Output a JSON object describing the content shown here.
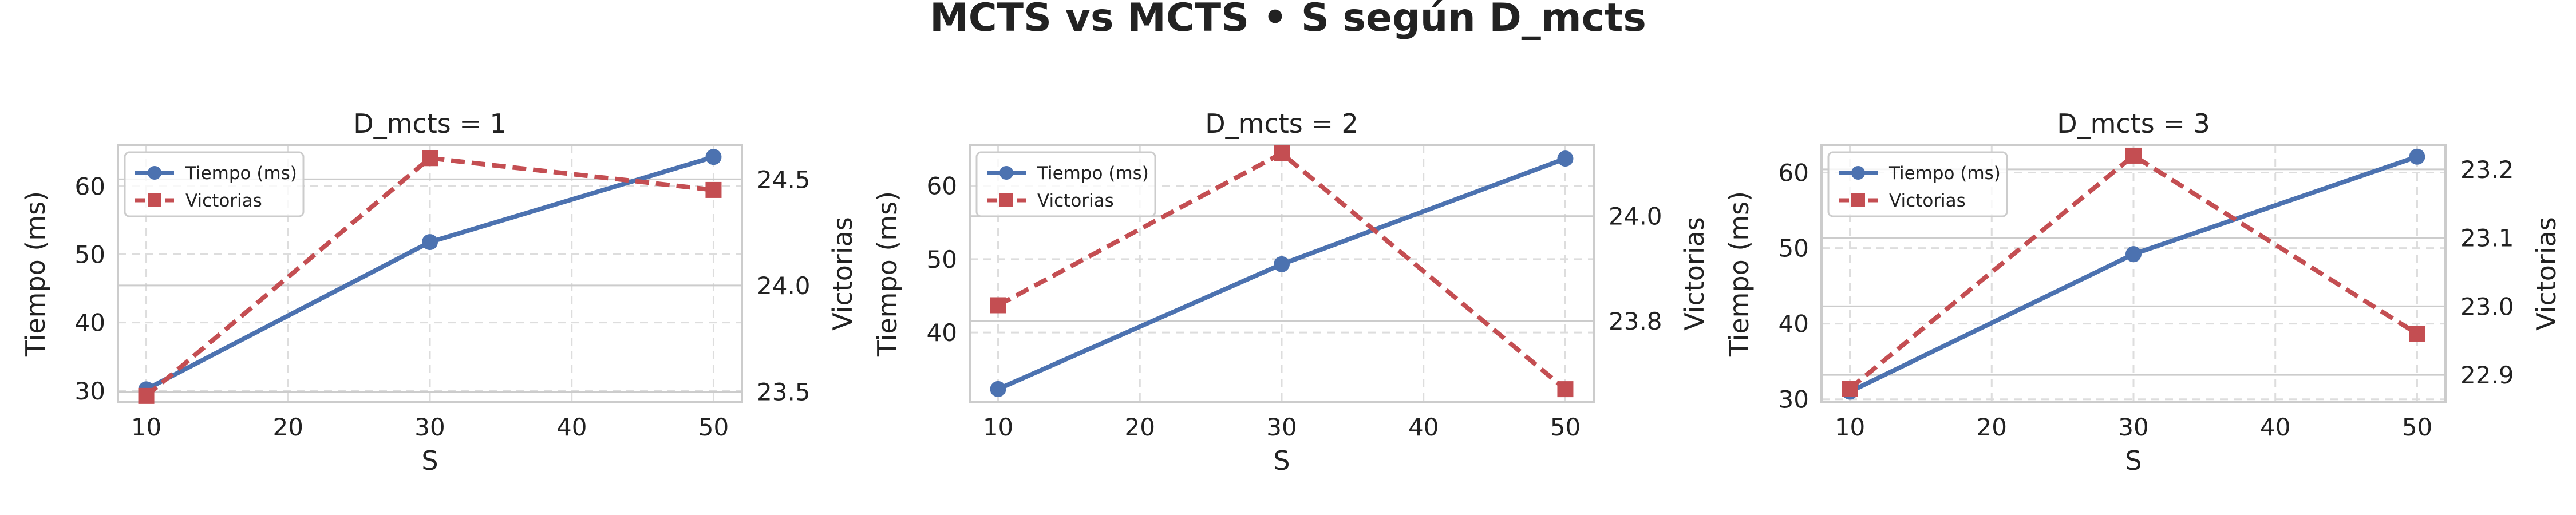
{
  "figure": {
    "title": "MCTS vs MCTS • S según D_mcts"
  },
  "colors": {
    "tiempo": "#4c72b0",
    "victorias": "#c44e52",
    "grid": "#dddddd",
    "spine": "#cccccc"
  },
  "chart_data": [
    {
      "type": "line",
      "title": "D_mcts = 1",
      "xlabel": "S",
      "ylabel": "Tiempo (ms)",
      "y2label": "Victorias",
      "x": [
        10,
        30,
        50
      ],
      "xlim": [
        8,
        52
      ],
      "xticks": [
        10,
        20,
        30,
        40,
        50
      ],
      "ylim": [
        28.3,
        66.0
      ],
      "yticks": [
        30,
        40,
        50,
        60
      ],
      "y2lim": [
        23.45,
        24.66
      ],
      "y2ticks": [
        23.5,
        24.0,
        24.5
      ],
      "y2tick_labels": [
        "23.5",
        "24.0",
        "24.5"
      ],
      "legend": "upper-left",
      "series": [
        {
          "name": "Tiempo (ms)",
          "axis": "left",
          "values": [
            30.2,
            51.8,
            64.3
          ]
        },
        {
          "name": "Victorias",
          "axis": "right",
          "values": [
            23.48,
            24.6,
            24.45
          ]
        }
      ]
    },
    {
      "type": "line",
      "title": "D_mcts = 2",
      "xlabel": "S",
      "ylabel": "Tiempo (ms)",
      "y2label": "Victorias",
      "x": [
        10,
        30,
        50
      ],
      "xlim": [
        8,
        52
      ],
      "xticks": [
        10,
        20,
        30,
        40,
        50
      ],
      "ylim": [
        30.5,
        65.5
      ],
      "yticks": [
        40,
        50,
        60
      ],
      "y2lim": [
        23.645,
        24.135
      ],
      "y2ticks": [
        23.8,
        24.0
      ],
      "y2tick_labels": [
        "23.8",
        "24.0"
      ],
      "legend": "upper-left",
      "series": [
        {
          "name": "Tiempo (ms)",
          "axis": "left",
          "values": [
            32.3,
            49.3,
            63.7
          ]
        },
        {
          "name": "Victorias",
          "axis": "right",
          "values": [
            23.83,
            24.12,
            23.67
          ]
        }
      ]
    },
    {
      "type": "line",
      "title": "D_mcts = 3",
      "xlabel": "S",
      "ylabel": "Tiempo (ms)",
      "y2label": "Victorias",
      "x": [
        10,
        30,
        50
      ],
      "xlim": [
        8,
        52
      ],
      "xticks": [
        10,
        20,
        30,
        40,
        50
      ],
      "ylim": [
        29.6,
        63.6
      ],
      "yticks": [
        30,
        40,
        50,
        60
      ],
      "y2lim": [
        22.86,
        23.235
      ],
      "y2ticks": [
        22.9,
        23.0,
        23.1,
        23.2
      ],
      "y2tick_labels": [
        "22.9",
        "23.0",
        "23.1",
        "23.2"
      ],
      "legend": "upper-left",
      "series": [
        {
          "name": "Tiempo (ms)",
          "axis": "left",
          "values": [
            31.0,
            49.2,
            62.1
          ]
        },
        {
          "name": "Victorias",
          "axis": "right",
          "values": [
            22.88,
            23.22,
            22.96
          ]
        }
      ]
    }
  ]
}
